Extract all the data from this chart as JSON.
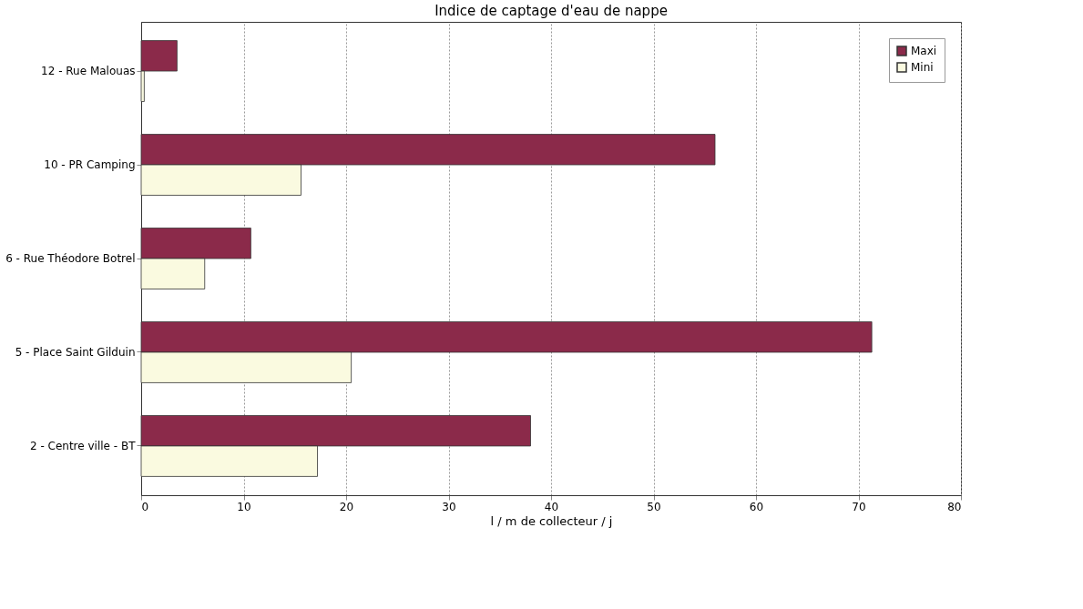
{
  "chart_data": {
    "type": "bar",
    "orientation": "horizontal",
    "title": "Indice de captage d'eau de nappe",
    "xlabel": "l / m de collecteur / j",
    "categories": [
      "12 - Rue Malouas",
      "10 - PR Camping",
      "6 - Rue Théodore Botrel",
      "5 - Place Saint Gilduin",
      "2 - Centre ville - BT"
    ],
    "series": [
      {
        "name": "Maxi",
        "color": "#8b2a4a",
        "values": [
          3.5,
          56,
          10.7,
          71.3,
          38
        ]
      },
      {
        "name": "Mini",
        "color": "#fafae0",
        "values": [
          0.3,
          15.6,
          6.2,
          20.5,
          17.2
        ]
      }
    ],
    "xlim": [
      0,
      80
    ],
    "xticks": [
      0,
      10,
      20,
      30,
      40,
      50,
      60,
      70,
      80
    ],
    "grid": "x",
    "legend": "top right"
  }
}
